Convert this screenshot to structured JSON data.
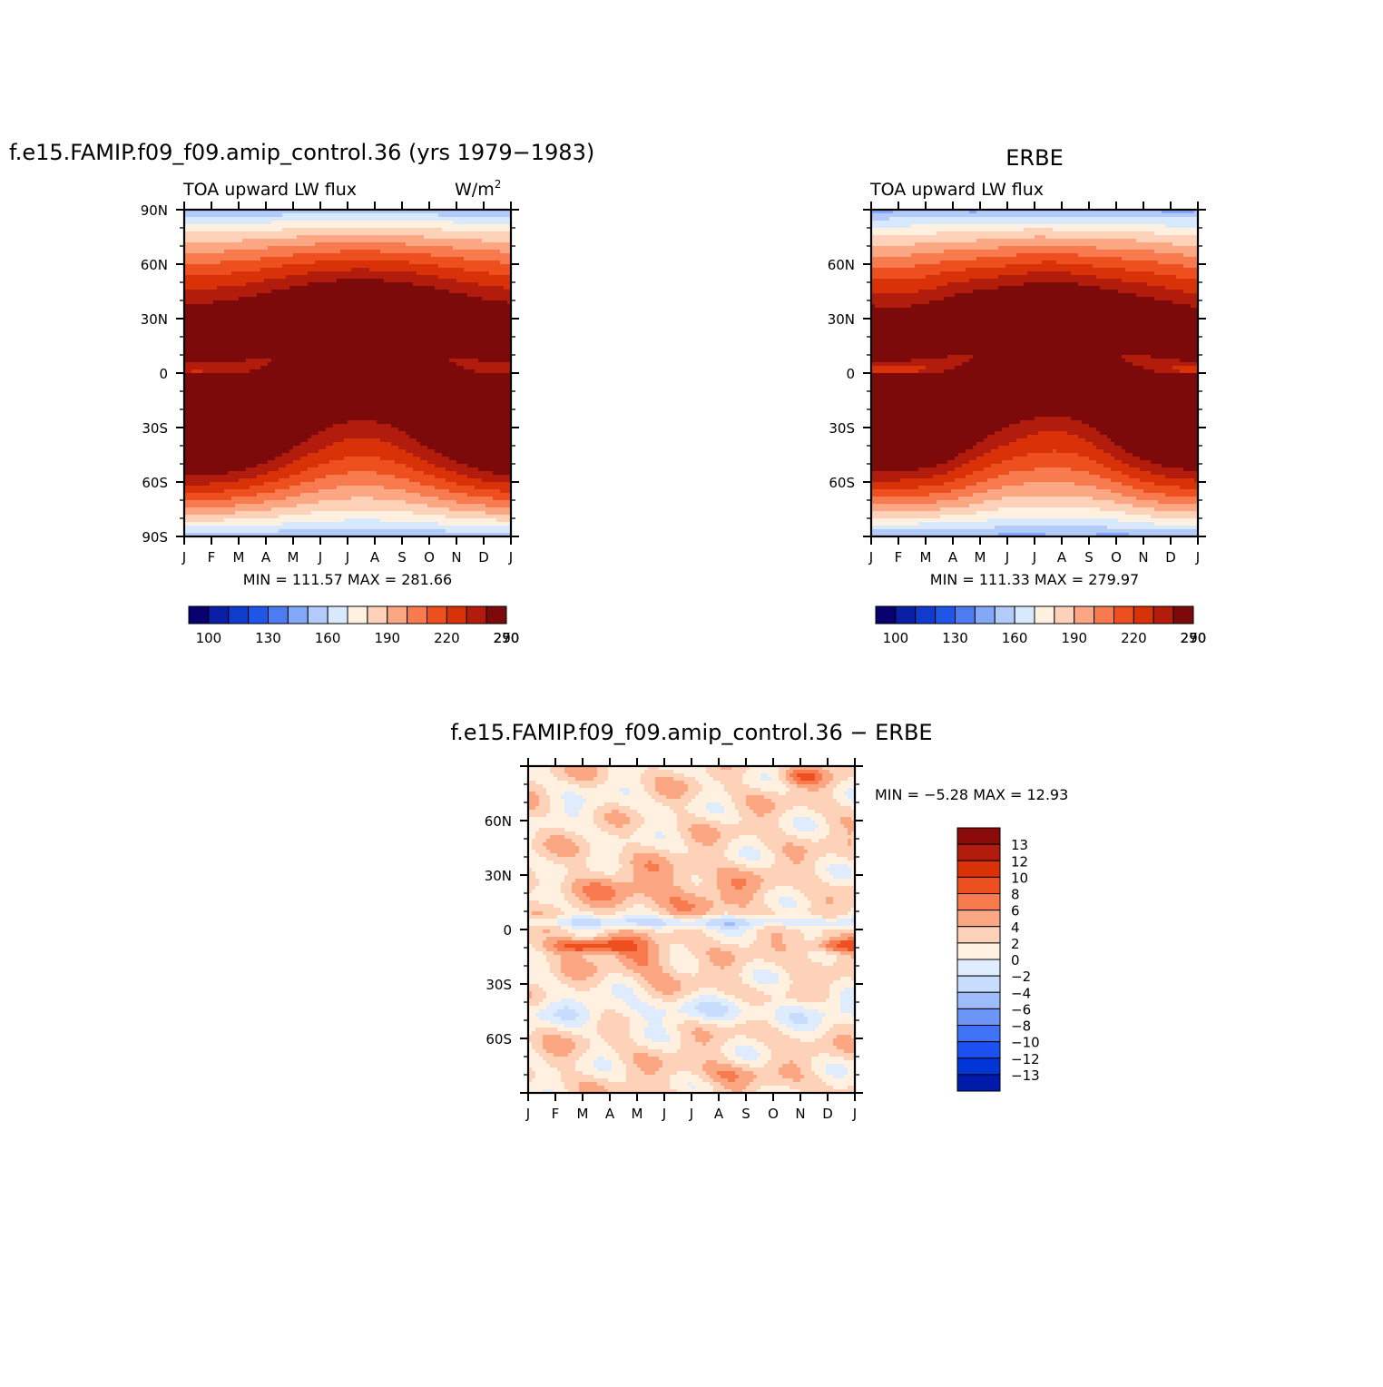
{
  "colors": {
    "lw_palette": [
      "#08006e",
      "#0a1fa6",
      "#0f3ccc",
      "#1e56e8",
      "#4c7cf0",
      "#84a8f8",
      "#b3cbfb",
      "#d8e8fd",
      "#fff0e0",
      "#fdd2b8",
      "#fca784",
      "#f77b4e",
      "#ee4f1e",
      "#d93208",
      "#b11c0c",
      "#7d0a0a"
    ],
    "diff_palette": [
      "#00007d",
      "#001baa",
      "#0035d8",
      "#1c50f0",
      "#3f72f5",
      "#6b96f8",
      "#9ebcfb",
      "#c8dcfd",
      "#dfecfd",
      "#fff0e0",
      "#fdd2b8",
      "#fca784",
      "#f77b4e",
      "#ee4f1e",
      "#d93208",
      "#b11c0c",
      "#8a0a0a"
    ]
  },
  "chart_data": [
    {
      "type": "heatmap",
      "title": "f.e15.FAMIP.f09_f09.amip_control.36 (yrs 1979−1983)",
      "left_label": "TOA upward LW flux",
      "right_label": "W/m",
      "right_label_sup": "2",
      "x_ticks": [
        "J",
        "F",
        "M",
        "A",
        "M",
        "J",
        "J",
        "A",
        "S",
        "O",
        "N",
        "D",
        "J"
      ],
      "y_ticks": [
        "90N",
        "60N",
        "30N",
        "0",
        "30S",
        "60S",
        "90S"
      ],
      "xlim": [
        0,
        12
      ],
      "ylim": [
        -90,
        90
      ],
      "stats": "MIN =  111.57  MAX =  281.66",
      "min": 111.57,
      "max": 281.66,
      "levels": [
        100,
        110,
        120,
        130,
        140,
        150,
        160,
        170,
        180,
        190,
        200,
        210,
        220,
        230,
        240,
        250,
        260,
        270,
        280,
        290
      ],
      "colorbar_labels": [
        "100",
        "130",
        "160",
        "190",
        "220",
        "250",
        "270",
        "290"
      ]
    },
    {
      "type": "heatmap",
      "title": "ERBE",
      "left_label": "TOA upward LW flux",
      "x_ticks": [
        "J",
        "F",
        "M",
        "A",
        "M",
        "J",
        "J",
        "A",
        "S",
        "O",
        "N",
        "D",
        "J"
      ],
      "y_ticks": [
        "60N",
        "30N",
        "0",
        "30S",
        "60S"
      ],
      "xlim": [
        0,
        12
      ],
      "ylim": [
        -90,
        90
      ],
      "stats": "MIN =  111.33  MAX =  279.97",
      "min": 111.33,
      "max": 279.97,
      "levels": [
        100,
        110,
        120,
        130,
        140,
        150,
        160,
        170,
        180,
        190,
        200,
        210,
        220,
        230,
        240,
        250,
        260,
        270,
        280,
        290
      ],
      "colorbar_labels": [
        "100",
        "130",
        "160",
        "190",
        "220",
        "250",
        "270",
        "290"
      ]
    },
    {
      "type": "heatmap",
      "title": "f.e15.FAMIP.f09_f09.amip_control.36  −  ERBE",
      "x_ticks": [
        "J",
        "F",
        "M",
        "A",
        "M",
        "J",
        "J",
        "A",
        "S",
        "O",
        "N",
        "D",
        "J"
      ],
      "y_ticks": [
        "60N",
        "30N",
        "0",
        "30S",
        "60S"
      ],
      "xlim": [
        0,
        12
      ],
      "ylim": [
        -90,
        90
      ],
      "stats": "MIN =   −5.28  MAX =   12.93",
      "min": -5.28,
      "max": 12.93,
      "levels": [
        -13,
        -12,
        -10,
        -8,
        -6,
        -4,
        -2,
        0,
        2,
        4,
        6,
        8,
        10,
        12,
        13
      ],
      "colorbar_labels": [
        "13",
        "12",
        "10",
        "8",
        "6",
        "4",
        "2",
        "0",
        "−2",
        "−4",
        "−6",
        "−8",
        "−10",
        "−12",
        "−13"
      ]
    }
  ]
}
